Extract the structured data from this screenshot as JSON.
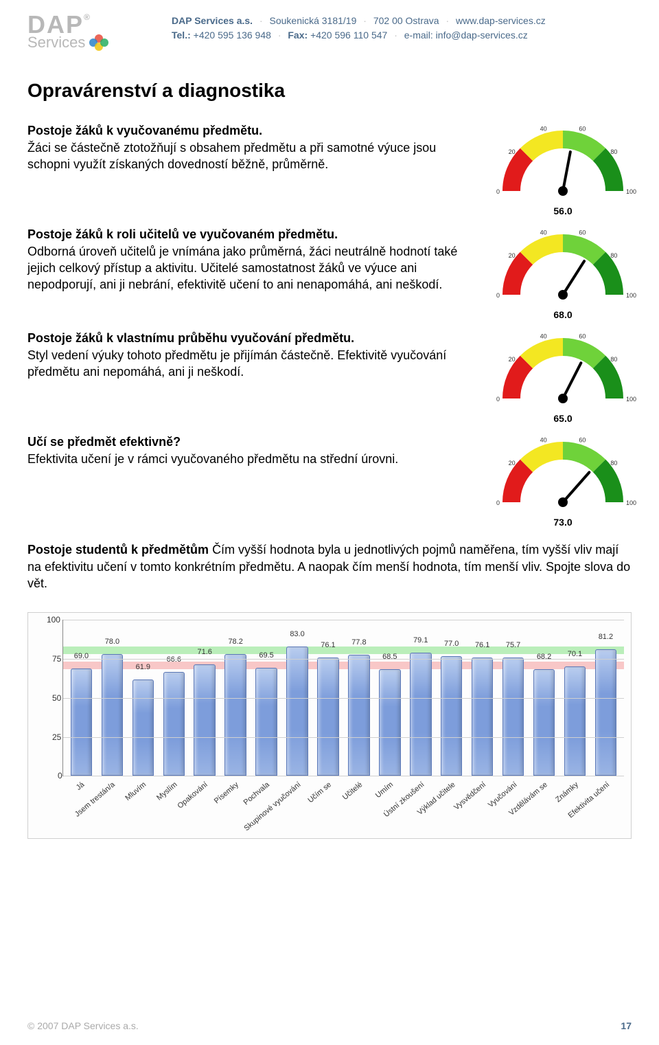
{
  "header": {
    "company": "DAP Services a.s.",
    "address": "Soukenická 3181/19",
    "city": "702 00 Ostrava",
    "web": "www.dap-services.cz",
    "tel_label": "Tel.:",
    "tel": "+420 595 136 948",
    "fax_label": "Fax:",
    "fax": "+420 596 110 547",
    "email_label": "e-mail:",
    "email": "info@dap-services.cz",
    "logo": {
      "line1": "DAP",
      "line2": "Services",
      "reg": "®"
    },
    "logo_dots": [
      "#e74c3c",
      "#2c82c9",
      "#f1c40f",
      "#27ae60"
    ]
  },
  "title": "Opravárenství a diagnostika",
  "sections": [
    {
      "heading": "Postoje žáků k vyučovanému předmětu.",
      "body": "Žáci se částečně ztotožňují s obsahem předmětu a při samotné výuce jsou schopni využít získaných dovedností běžně, průměrně.",
      "gauge_value": 56.0
    },
    {
      "heading": "Postoje žáků k roli učitelů ve vyučovaném předmětu.",
      "body": "Odborná úroveň učitelů je vnímána jako průměrná, žáci neutrálně hodnotí také jejich celkový přístup a aktivitu. Učitelé samostatnost žáků ve výuce ani nepodporují, ani ji nebrání, efektivitě učení to ani nenapomáhá, ani neškodí.",
      "gauge_value": 68.0
    },
    {
      "heading": "Postoje žáků k vlastnímu průběhu vyučování předmětu.",
      "body": "Styl vedení výuky tohoto předmětu je přijímán částečně. Efektivitě vyučování předmětu ani nepomáhá, ani ji neškodí.",
      "gauge_value": 65.0
    },
    {
      "heading": "Učí se předmět efektivně?",
      "body": "Efektivita učení je v rámci vyučovaného předmětu na střední úrovni.",
      "gauge_value": 73.0
    }
  ],
  "para": {
    "heading": "Postoje studentů k předmětům",
    "body": "Čím vyšší hodnota byla u jednotlivých pojmů naměřena, tím vyšší vliv mají na efektivitu učení v tomto konkrétním předmětu. A naopak čím menší hodnota, tím menší vliv. Spojte slova do vět."
  },
  "gauge_style": {
    "ticks": [
      "0",
      "20",
      "40",
      "60",
      "80",
      "100"
    ],
    "zones": [
      {
        "from": 0,
        "to": 25,
        "color": "#e11b1b"
      },
      {
        "from": 25,
        "to": 50,
        "color": "#f3e722"
      },
      {
        "from": 50,
        "to": 75,
        "color": "#6fd23a"
      },
      {
        "from": 75,
        "to": 100,
        "color": "#1a8f1a"
      }
    ],
    "needle_color": "#000000",
    "label_fontsize": 9
  },
  "barchart": {
    "type": "bar",
    "ymax": 100,
    "ytick_step": 25,
    "yticks": [
      "0",
      "25",
      "50",
      "75",
      "100"
    ],
    "bar_fill": "#7d9ddb",
    "bar_border": "#5a78b8",
    "grid_color": "#d0d0d0",
    "green_band": {
      "from": 77,
      "to": 82,
      "color": "rgba(150,230,150,0.65)"
    },
    "red_band": {
      "from": 67,
      "to": 72,
      "color": "rgba(245,170,170,0.65)"
    },
    "label_fontsize": 11,
    "categories": [
      "Já",
      "Jsem trestán/a",
      "Mluvím",
      "Myslím",
      "Opakování",
      "Písemky",
      "Pochvala",
      "Skupinové vyučování",
      "Učím se",
      "Učitelé",
      "Umím",
      "Ústní zkoušení",
      "Výklad učitele",
      "Vysvědčení",
      "Vyučování",
      "Vzdělávám se",
      "Známky",
      "Efektivita učení"
    ],
    "values": [
      69.0,
      78.0,
      61.9,
      66.6,
      71.6,
      78.2,
      69.5,
      83.0,
      76.1,
      77.8,
      68.5,
      79.1,
      77.0,
      76.1,
      75.7,
      68.2,
      70.1,
      81.2
    ]
  },
  "footer": {
    "copyright": "© 2007 DAP Services a.s.",
    "page": "17"
  }
}
